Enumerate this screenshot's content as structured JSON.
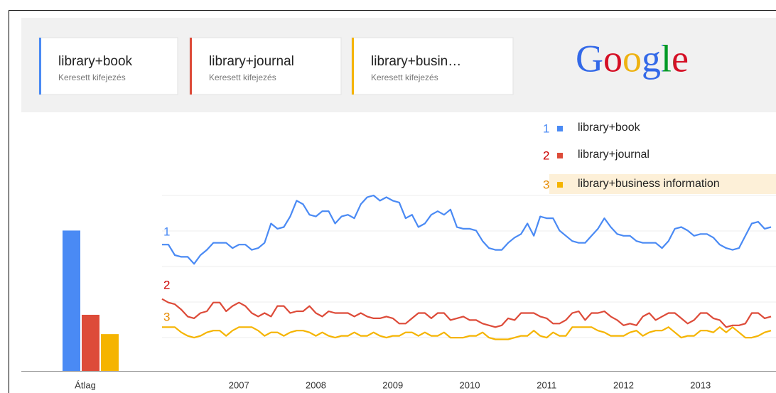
{
  "header": {
    "terms": [
      {
        "label": "library+book",
        "note": "Keresett kifejezés",
        "color": "#4a8af4"
      },
      {
        "label": "library+journal",
        "note": "Keresett kifejezés",
        "color": "#dd4b39"
      },
      {
        "label": "library+busin…",
        "note": "Keresett kifejezés",
        "color": "#f5b400"
      }
    ],
    "logo": "Google"
  },
  "chart_data": {
    "type": "line",
    "average_label": "Átlag",
    "xlabels": [
      "2007",
      "2008",
      "2009",
      "2010",
      "2011",
      "2012",
      "2013"
    ],
    "ylim": [
      0,
      100
    ],
    "series": [
      {
        "name": "library+book",
        "label": "1",
        "color": "#4a8af4",
        "label_color": "#4a8af4",
        "average": 80,
        "values": [
          72,
          72,
          66,
          65,
          65,
          61,
          66,
          69,
          73,
          73,
          73,
          70,
          72,
          72,
          69,
          70,
          73,
          84,
          81,
          82,
          88,
          97,
          95,
          89,
          88,
          91,
          91,
          84,
          88,
          89,
          87,
          95,
          99,
          100,
          97,
          99,
          97,
          96,
          87,
          89,
          82,
          84,
          89,
          91,
          89,
          92,
          82,
          81,
          81,
          80,
          74,
          70,
          69,
          69,
          73,
          76,
          78,
          84,
          77,
          88,
          87,
          87,
          80,
          77,
          74,
          73,
          73,
          77,
          81,
          87,
          82,
          78,
          77,
          77,
          74,
          73,
          73,
          73,
          70,
          74,
          81,
          82,
          80,
          77,
          78,
          78,
          76,
          72,
          70,
          69,
          70,
          77,
          84,
          85,
          81,
          82
        ]
      },
      {
        "name": "library+journal",
        "label": "2",
        "color": "#dd4b39",
        "label_color": "#cc0000",
        "average": 32,
        "values": [
          41,
          39,
          38,
          35,
          31,
          30,
          33,
          34,
          39,
          39,
          34,
          37,
          39,
          37,
          33,
          31,
          33,
          31,
          37,
          37,
          33,
          34,
          34,
          37,
          33,
          31,
          34,
          33,
          33,
          33,
          31,
          33,
          31,
          30,
          30,
          31,
          30,
          27,
          27,
          30,
          33,
          33,
          30,
          33,
          33,
          29,
          30,
          31,
          29,
          29,
          27,
          26,
          25,
          26,
          30,
          29,
          33,
          33,
          33,
          31,
          30,
          27,
          27,
          29,
          33,
          34,
          29,
          33,
          33,
          34,
          31,
          29,
          26,
          27,
          26,
          31,
          33,
          29,
          31,
          33,
          33,
          30,
          27,
          29,
          33,
          33,
          30,
          29,
          25,
          26,
          26,
          27,
          33,
          33,
          30,
          31
        ]
      },
      {
        "name": "library+business information",
        "label": "3",
        "color": "#f5b400",
        "label_color": "#e68a00",
        "average": 21,
        "values": [
          25,
          25,
          25,
          22,
          20,
          19,
          20,
          22,
          23,
          23,
          20,
          23,
          25,
          25,
          25,
          23,
          20,
          22,
          22,
          20,
          22,
          23,
          23,
          22,
          20,
          22,
          20,
          19,
          20,
          20,
          22,
          20,
          20,
          22,
          20,
          19,
          20,
          20,
          22,
          22,
          20,
          22,
          20,
          20,
          22,
          19,
          19,
          19,
          20,
          20,
          22,
          19,
          18,
          18,
          18,
          19,
          20,
          20,
          23,
          20,
          19,
          22,
          20,
          20,
          25,
          25,
          25,
          25,
          23,
          22,
          20,
          20,
          20,
          22,
          23,
          20,
          22,
          23,
          23,
          25,
          22,
          19,
          20,
          20,
          23,
          23,
          22,
          25,
          22,
          25,
          22,
          19,
          19,
          20,
          22,
          23
        ]
      }
    ]
  }
}
